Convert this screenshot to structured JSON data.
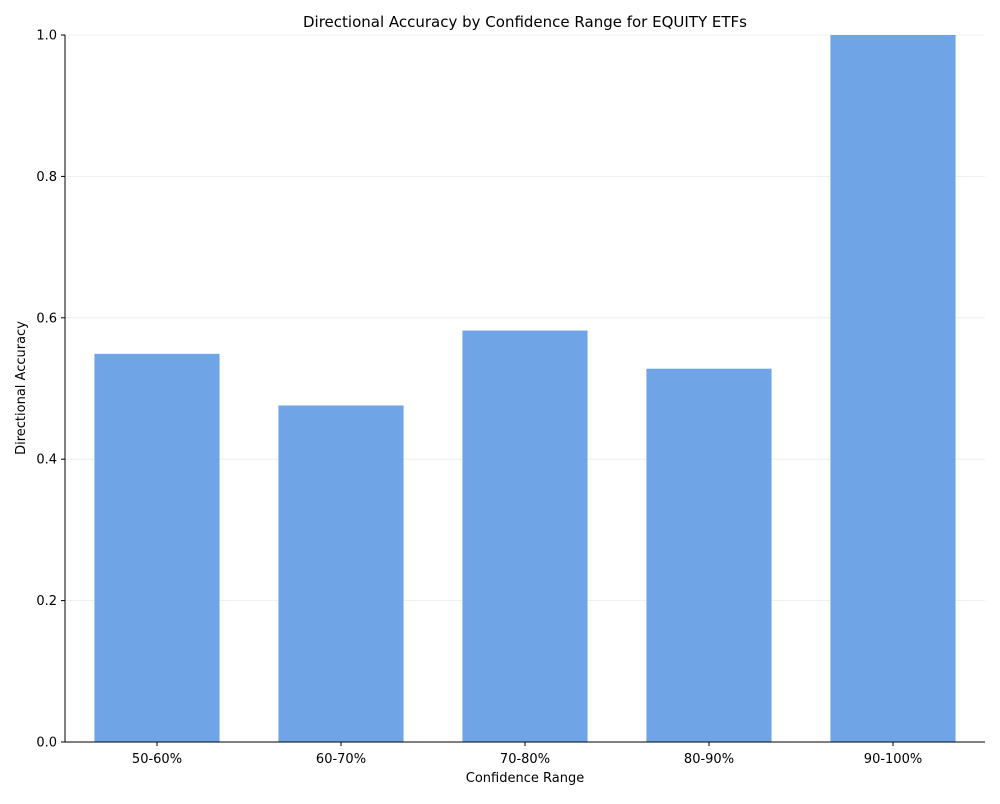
{
  "chart_data": {
    "type": "bar",
    "title": "Directional Accuracy by Confidence Range for EQUITY ETFs",
    "xlabel": "Confidence Range",
    "ylabel": "Directional Accuracy",
    "categories": [
      "50-60%",
      "60-70%",
      "70-80%",
      "80-90%",
      "90-100%"
    ],
    "values": [
      0.549,
      0.476,
      0.582,
      0.528,
      1.0
    ],
    "ylim": [
      0,
      1.0
    ],
    "yticks": [
      "0.0",
      "0.2",
      "0.4",
      "0.6",
      "0.8",
      "1.0"
    ],
    "grid": true,
    "bar_color": "#6fa5e6"
  }
}
